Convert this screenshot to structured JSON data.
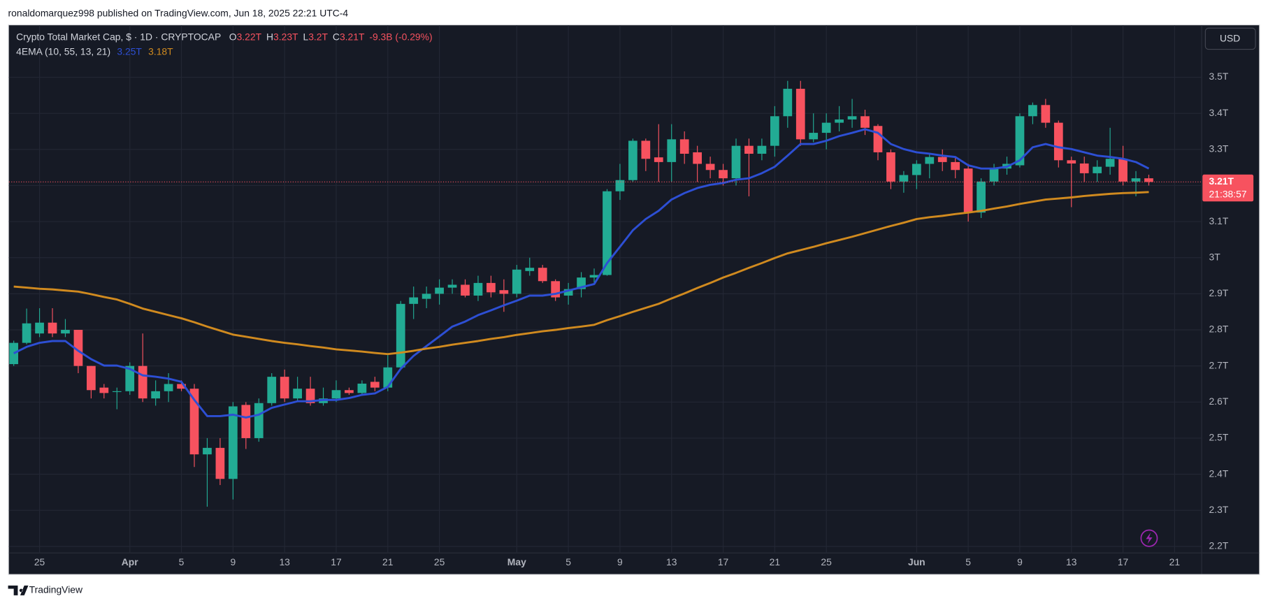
{
  "header": "ronaldomarquez998 published on TradingView.com, Jun 18, 2025 22:21 UTC-4",
  "footer": "TradingView",
  "currency_button": "USD",
  "chart_data": {
    "type": "candlestick",
    "title": "Crypto Total Market Cap, $ · 1D · CRYPTOCAP",
    "ohlc_legend": [
      {
        "key": "O",
        "value": "3.22T"
      },
      {
        "key": "H",
        "value": "3.23T"
      },
      {
        "key": "L",
        "value": "3.2T"
      },
      {
        "key": "C",
        "value": "3.21T"
      }
    ],
    "change": "-9.3B (-0.29%)",
    "up_color": "#22ab94",
    "down_color": "#f7525f",
    "grid": true,
    "x": [
      "Mar 23",
      "Mar 24",
      "Mar 25",
      "Mar 26",
      "Mar 27",
      "Mar 28",
      "Mar 29",
      "Mar 30",
      "Mar 31",
      "Apr 1",
      "Apr 2",
      "Apr 3",
      "Apr 4",
      "Apr 5",
      "Apr 6",
      "Apr 7",
      "Apr 8",
      "Apr 9",
      "Apr 10",
      "Apr 11",
      "Apr 12",
      "Apr 13",
      "Apr 14",
      "Apr 15",
      "Apr 16",
      "Apr 17",
      "Apr 18",
      "Apr 19",
      "Apr 20",
      "Apr 21",
      "Apr 22",
      "Apr 23",
      "Apr 24",
      "Apr 25",
      "Apr 26",
      "Apr 27",
      "Apr 28",
      "Apr 29",
      "Apr 30",
      "May 1",
      "May 2",
      "May 3",
      "May 4",
      "May 5",
      "May 6",
      "May 7",
      "May 8",
      "May 9",
      "May 10",
      "May 11",
      "May 12",
      "May 13",
      "May 14",
      "May 15",
      "May 16",
      "May 17",
      "May 18",
      "May 19",
      "May 20",
      "May 21",
      "May 22",
      "May 23",
      "May 24",
      "May 25",
      "May 26",
      "May 27",
      "May 28",
      "May 29",
      "May 30",
      "May 31",
      "Jun 1",
      "Jun 2",
      "Jun 3",
      "Jun 4",
      "Jun 5",
      "Jun 6",
      "Jun 7",
      "Jun 8",
      "Jun 9",
      "Jun 10",
      "Jun 11",
      "Jun 12",
      "Jun 13",
      "Jun 14",
      "Jun 15",
      "Jun 16",
      "Jun 17",
      "Jun 18",
      "Jun 19"
    ],
    "open": [
      2.705,
      2.764,
      2.79,
      2.82,
      2.79,
      2.8,
      2.7,
      2.64,
      2.628,
      2.63,
      2.7,
      2.61,
      2.63,
      2.65,
      2.637,
      2.455,
      2.473,
      2.387,
      2.592,
      2.5,
      2.597,
      2.67,
      2.61,
      2.637,
      2.597,
      2.61,
      2.633,
      2.625,
      2.656,
      2.64,
      2.696,
      2.872,
      2.886,
      2.9,
      2.917,
      2.925,
      2.895,
      2.93,
      2.91,
      2.9,
      2.963,
      2.972,
      2.935,
      2.895,
      2.913,
      2.945,
      2.952,
      3.184,
      3.215,
      3.324,
      3.278,
      3.265,
      3.328,
      3.292,
      3.26,
      3.243,
      3.22,
      3.31,
      3.288,
      3.31,
      3.392,
      3.468,
      3.328,
      3.346,
      3.374,
      3.383,
      3.392,
      3.365,
      3.292,
      3.211,
      3.229,
      3.26,
      3.279,
      3.265,
      3.247,
      3.125,
      3.211,
      3.247,
      3.256,
      3.392,
      3.423,
      3.374,
      3.27,
      3.261,
      3.234,
      3.252,
      3.274,
      3.211,
      3.22
    ],
    "high": [
      2.77,
      2.859,
      2.86,
      2.86,
      2.83,
      2.8,
      2.7,
      2.65,
      2.64,
      2.71,
      2.79,
      2.66,
      2.68,
      2.66,
      2.65,
      2.5,
      2.5,
      2.6,
      2.6,
      2.61,
      2.68,
      2.69,
      2.67,
      2.67,
      2.64,
      2.66,
      2.64,
      2.66,
      2.67,
      2.73,
      2.88,
      2.92,
      2.92,
      2.94,
      2.94,
      2.94,
      2.95,
      2.95,
      2.94,
      2.98,
      3.0,
      2.98,
      2.94,
      2.93,
      2.96,
      2.97,
      3.19,
      3.26,
      3.33,
      3.33,
      3.37,
      3.37,
      3.35,
      3.31,
      3.28,
      3.26,
      3.33,
      3.33,
      3.33,
      3.42,
      3.49,
      3.49,
      3.4,
      3.4,
      3.42,
      3.44,
      3.41,
      3.37,
      3.3,
      3.24,
      3.27,
      3.29,
      3.3,
      3.28,
      3.26,
      3.22,
      3.26,
      3.28,
      3.4,
      3.43,
      3.44,
      3.38,
      3.28,
      3.28,
      3.27,
      3.36,
      3.31,
      3.24,
      3.23
    ],
    "low": [
      2.7,
      2.76,
      2.78,
      2.78,
      2.78,
      2.68,
      2.61,
      2.61,
      2.58,
      2.62,
      2.6,
      2.59,
      2.6,
      2.63,
      2.42,
      2.31,
      2.37,
      2.33,
      2.47,
      2.49,
      2.59,
      2.6,
      2.6,
      2.59,
      2.59,
      2.6,
      2.62,
      2.62,
      2.63,
      2.63,
      2.69,
      2.83,
      2.86,
      2.87,
      2.9,
      2.89,
      2.88,
      2.89,
      2.85,
      2.89,
      2.95,
      2.93,
      2.88,
      2.87,
      2.89,
      2.93,
      2.95,
      3.16,
      3.21,
      3.24,
      3.21,
      3.21,
      3.26,
      3.21,
      3.22,
      3.2,
      3.2,
      3.17,
      3.27,
      3.28,
      3.36,
      3.31,
      3.32,
      3.3,
      3.35,
      3.36,
      3.34,
      3.27,
      3.19,
      3.18,
      3.19,
      3.22,
      3.24,
      3.22,
      3.1,
      3.11,
      3.2,
      3.23,
      3.25,
      3.37,
      3.36,
      3.25,
      3.14,
      3.21,
      3.21,
      3.23,
      3.2,
      3.17,
      3.2
    ],
    "close": [
      2.764,
      2.818,
      2.82,
      2.79,
      2.8,
      2.7,
      2.633,
      2.625,
      2.63,
      2.7,
      2.61,
      2.63,
      2.65,
      2.637,
      2.455,
      2.473,
      2.387,
      2.588,
      2.5,
      2.597,
      2.67,
      2.61,
      2.637,
      2.597,
      2.61,
      2.633,
      2.625,
      2.651,
      2.64,
      2.696,
      2.872,
      2.89,
      2.9,
      2.917,
      2.925,
      2.895,
      2.93,
      2.904,
      2.9,
      2.967,
      2.972,
      2.935,
      2.89,
      2.913,
      2.945,
      2.952,
      3.184,
      3.215,
      3.324,
      3.274,
      3.265,
      3.328,
      3.288,
      3.26,
      3.243,
      3.22,
      3.31,
      3.288,
      3.31,
      3.392,
      3.468,
      3.328,
      3.346,
      3.374,
      3.383,
      3.392,
      3.36,
      3.292,
      3.211,
      3.229,
      3.26,
      3.279,
      3.265,
      3.243,
      3.125,
      3.211,
      3.247,
      3.26,
      3.392,
      3.423,
      3.374,
      3.27,
      3.261,
      3.234,
      3.252,
      3.274,
      3.211,
      3.22,
      3.21
    ],
    "indicator": {
      "label": "4EMA (10, 55, 13, 21)",
      "series": [
        {
          "color": "#2d4fd4",
          "last_value_label": "3.25T",
          "values": [
            2.735,
            2.753,
            2.764,
            2.769,
            2.769,
            2.742,
            2.719,
            2.701,
            2.701,
            2.692,
            2.674,
            2.67,
            2.665,
            2.656,
            2.606,
            2.561,
            2.561,
            2.565,
            2.557,
            2.565,
            2.584,
            2.593,
            2.602,
            2.602,
            2.606,
            2.606,
            2.611,
            2.62,
            2.624,
            2.642,
            2.692,
            2.728,
            2.755,
            2.782,
            2.809,
            2.823,
            2.841,
            2.854,
            2.868,
            2.881,
            2.895,
            2.895,
            2.9,
            2.909,
            2.918,
            2.927,
            2.985,
            3.03,
            3.076,
            3.107,
            3.13,
            3.161,
            3.179,
            3.193,
            3.202,
            3.207,
            3.216,
            3.22,
            3.234,
            3.252,
            3.283,
            3.315,
            3.315,
            3.324,
            3.337,
            3.346,
            3.356,
            3.346,
            3.315,
            3.301,
            3.292,
            3.288,
            3.283,
            3.279,
            3.256,
            3.247,
            3.247,
            3.252,
            3.27,
            3.306,
            3.315,
            3.306,
            3.301,
            3.292,
            3.283,
            3.279,
            3.274,
            3.265,
            3.247
          ]
        },
        {
          "color": "#d08a1f",
          "last_value_label": "3.18T",
          "values": [
            2.92,
            2.917,
            2.914,
            2.912,
            2.909,
            2.906,
            2.899,
            2.891,
            2.884,
            2.872,
            2.859,
            2.85,
            2.841,
            2.832,
            2.821,
            2.809,
            2.798,
            2.787,
            2.781,
            2.775,
            2.769,
            2.764,
            2.76,
            2.755,
            2.751,
            2.746,
            2.743,
            2.74,
            2.736,
            2.733,
            2.737,
            2.742,
            2.748,
            2.753,
            2.759,
            2.764,
            2.769,
            2.775,
            2.78,
            2.786,
            2.791,
            2.796,
            2.8,
            2.805,
            2.809,
            2.814,
            2.827,
            2.838,
            2.85,
            2.861,
            2.872,
            2.887,
            2.901,
            2.916,
            2.93,
            2.945,
            2.958,
            2.972,
            2.985,
            2.999,
            3.012,
            3.021,
            3.03,
            3.04,
            3.049,
            3.058,
            3.068,
            3.078,
            3.088,
            3.097,
            3.107,
            3.112,
            3.116,
            3.121,
            3.125,
            3.13,
            3.136,
            3.142,
            3.149,
            3.155,
            3.161,
            3.164,
            3.167,
            3.171,
            3.174,
            3.177,
            3.179,
            3.18,
            3.182
          ]
        }
      ]
    },
    "price_label": {
      "value": "3.21T",
      "countdown": "21:38:57"
    },
    "ylim": [
      2.182,
      3.644
    ],
    "yticks": [
      {
        "value": 2.2,
        "label": "2.2T"
      },
      {
        "value": 2.3,
        "label": "2.3T"
      },
      {
        "value": 2.4,
        "label": "2.4T"
      },
      {
        "value": 2.5,
        "label": "2.5T"
      },
      {
        "value": 2.6,
        "label": "2.6T"
      },
      {
        "value": 2.7,
        "label": "2.7T"
      },
      {
        "value": 2.8,
        "label": "2.8T"
      },
      {
        "value": 2.9,
        "label": "2.9T"
      },
      {
        "value": 3.0,
        "label": "3T"
      },
      {
        "value": 3.1,
        "label": "3.1T"
      },
      {
        "value": 3.2,
        "label": "3.2T"
      },
      {
        "value": 3.3,
        "label": "3.3T"
      },
      {
        "value": 3.4,
        "label": "3.4T"
      },
      {
        "value": 3.5,
        "label": "3.5T"
      }
    ],
    "xticks": [
      {
        "value": "Mar 25",
        "label": "25"
      },
      {
        "value": "Apr 1",
        "label": "Apr"
      },
      {
        "value": "Apr 5",
        "label": "5"
      },
      {
        "value": "Apr 9",
        "label": "9"
      },
      {
        "value": "Apr 13",
        "label": "13"
      },
      {
        "value": "Apr 17",
        "label": "17"
      },
      {
        "value": "Apr 21",
        "label": "21"
      },
      {
        "value": "Apr 25",
        "label": "25"
      },
      {
        "value": "May 1",
        "label": "May"
      },
      {
        "value": "May 5",
        "label": "5"
      },
      {
        "value": "May 9",
        "label": "9"
      },
      {
        "value": "May 13",
        "label": "13"
      },
      {
        "value": "May 17",
        "label": "17"
      },
      {
        "value": "May 21",
        "label": "21"
      },
      {
        "value": "May 25",
        "label": "25"
      },
      {
        "value": "Jun 1",
        "label": "Jun"
      },
      {
        "value": "Jun 5",
        "label": "5"
      },
      {
        "value": "Jun 9",
        "label": "9"
      },
      {
        "value": "Jun 13",
        "label": "13"
      },
      {
        "value": "Jun 17",
        "label": "17"
      },
      {
        "value": "Jun 21",
        "label": "21"
      }
    ]
  }
}
